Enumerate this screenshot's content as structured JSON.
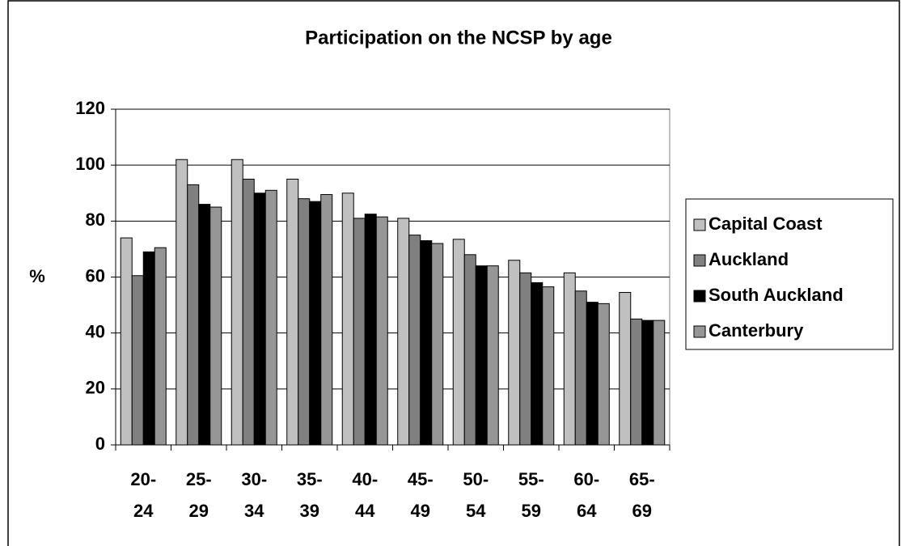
{
  "chart_data": {
    "type": "bar",
    "title": "Participation on the NCSP by age",
    "y_label": "%",
    "categories": [
      "20-\n24",
      "25-\n29",
      "30-\n34",
      "35-\n39",
      "40-\n44",
      "45-\n49",
      "50-\n54",
      "55-\n59",
      "60-\n64",
      "65-\n69"
    ],
    "series": [
      {
        "name": "Capital Coast",
        "color": "#c0c0c0",
        "values": [
          74,
          102,
          102,
          95,
          90,
          81,
          73.5,
          66,
          61.5,
          54.5
        ]
      },
      {
        "name": "Auckland",
        "color": "#808080",
        "values": [
          60.5,
          93,
          95,
          88,
          81,
          75,
          68,
          61.5,
          55,
          45
        ]
      },
      {
        "name": "South Auckland",
        "color": "#000000",
        "values": [
          69,
          86,
          90,
          87,
          82.5,
          73,
          64,
          58,
          51,
          44.5
        ]
      },
      {
        "name": "Canterbury",
        "color": "#969696",
        "values": [
          70.5,
          85,
          91,
          89.5,
          81.5,
          72,
          64,
          56.5,
          50.5,
          44.5
        ]
      }
    ],
    "ylim": [
      0,
      120
    ],
    "yticks": [
      0,
      20,
      40,
      60,
      80,
      100,
      120
    ],
    "grid": true,
    "legend": "right"
  }
}
